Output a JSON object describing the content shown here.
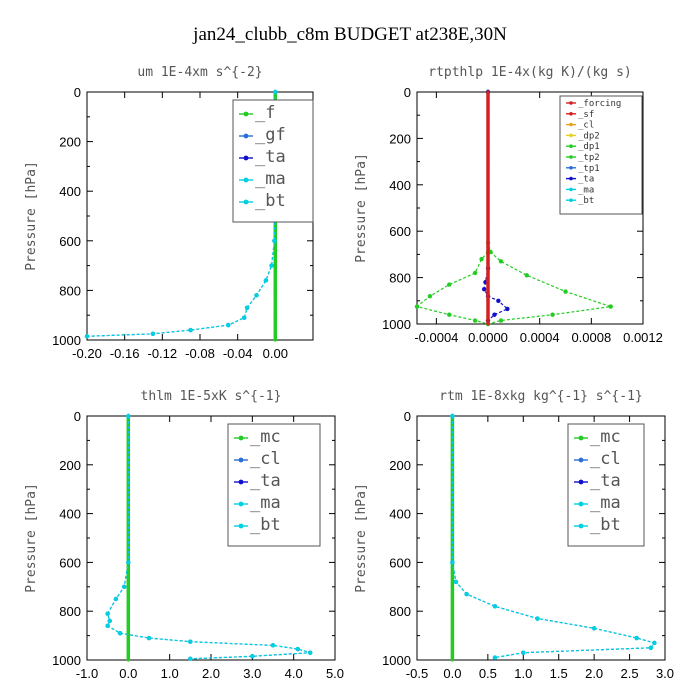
{
  "figure_title": "jan24_clubb_c8m  BUDGET at238E,30N",
  "colors": {
    "green": "#22cc22",
    "blue": "#2a6fd6",
    "darkblue": "#1010cc",
    "cyan": "#00d0e0",
    "red": "#d42020",
    "orange": "#e8a020",
    "yellow": "#e8d020"
  },
  "chart_data": [
    {
      "type": "line",
      "title": "um   1E-4xm  s^{-2}",
      "ylabel": "Pressure [hPa]",
      "xlim": [
        -0.2,
        0.04
      ],
      "ylim": [
        1000,
        0
      ],
      "xticks": [
        "-0.20",
        "-0.16",
        "-0.12",
        "-0.08",
        "-0.04",
        "0.00"
      ],
      "xtick_values": [
        -0.2,
        -0.16,
        -0.12,
        -0.08,
        -0.04,
        0.0
      ],
      "yticks": [
        "0",
        "200",
        "400",
        "600",
        "800",
        "1000"
      ],
      "ytick_values": [
        0,
        200,
        400,
        600,
        800,
        1000
      ],
      "legend": {
        "position": "top-right",
        "style": "big",
        "entries": [
          "_f",
          "_gf",
          "_ta",
          "_ma",
          "_bt"
        ]
      },
      "series": [
        {
          "name": "_f",
          "color": "#22cc22",
          "x": [
            0,
            0,
            0,
            0,
            0,
            0,
            0,
            0,
            0,
            0,
            0
          ],
          "y": [
            0,
            100,
            200,
            300,
            400,
            500,
            600,
            700,
            800,
            900,
            1000
          ]
        },
        {
          "name": "_gf",
          "color": "#2a6fd6",
          "x": [
            0,
            0,
            0,
            -0.001,
            -0.004,
            -0.01,
            -0.02,
            -0.03,
            -0.033,
            -0.05,
            -0.09,
            -0.13,
            -0.2
          ],
          "y": [
            0,
            200,
            400,
            600,
            700,
            760,
            820,
            870,
            910,
            940,
            960,
            975,
            985
          ]
        },
        {
          "name": "_bt",
          "color": "#00d0e0",
          "x": [
            0,
            0,
            0,
            -0.001,
            -0.004,
            -0.01,
            -0.02,
            -0.03,
            -0.033,
            -0.05,
            -0.09,
            -0.13,
            -0.2
          ],
          "y": [
            0,
            200,
            400,
            600,
            700,
            760,
            820,
            870,
            910,
            940,
            960,
            975,
            985
          ]
        }
      ]
    },
    {
      "type": "line",
      "title": "rtpthlp   1E-4x(kg K)/(kg s)",
      "ylabel": "Pressure [hPa]",
      "xlim": [
        -0.00055,
        0.0012
      ],
      "ylim": [
        1000,
        0
      ],
      "xticks": [
        "-0.0004",
        "0.0000",
        "0.0004",
        "0.0008",
        "0.0012"
      ],
      "xtick_values": [
        -0.0004,
        0.0,
        0.0004,
        0.0008,
        0.0012
      ],
      "yticks": [
        "0",
        "200",
        "400",
        "600",
        "800",
        "1000"
      ],
      "ytick_values": [
        0,
        200,
        400,
        600,
        800,
        1000
      ],
      "legend": {
        "position": "top-right",
        "style": "small",
        "entries": [
          "_forcing",
          "_sf",
          "_cl",
          "_dp2",
          "_dp1",
          "_tp2",
          "_tp1",
          "_ta",
          "_ma",
          "_bt"
        ]
      },
      "series": [
        {
          "name": "_tp2",
          "color": "#22cc22",
          "x": [
            0,
            0,
            2e-05,
            0.0001,
            0.0003,
            0.0006,
            0.00095,
            0.0005,
            0.0001,
            0
          ],
          "y": [
            0,
            650,
            690,
            730,
            790,
            860,
            925,
            960,
            985,
            1000
          ]
        },
        {
          "name": "_dp1",
          "color": "#22cc22",
          "x": [
            0,
            0,
            -5e-05,
            -0.0001,
            -0.0003,
            -0.00045,
            -0.00055,
            -0.0003,
            -0.0001,
            0
          ],
          "y": [
            0,
            690,
            720,
            780,
            830,
            880,
            925,
            960,
            985,
            1000
          ]
        },
        {
          "name": "_ta",
          "color": "#1010cc",
          "x": [
            0,
            0,
            -2e-05,
            -3e-05,
            0,
            8e-05,
            0.00015,
            5e-05,
            0
          ],
          "y": [
            0,
            760,
            820,
            850,
            880,
            900,
            935,
            960,
            985
          ]
        },
        {
          "name": "_forcing",
          "color": "#d42020",
          "x": [
            0,
            0,
            0,
            0,
            0,
            0,
            0,
            0,
            0,
            0,
            0
          ],
          "y": [
            0,
            100,
            200,
            300,
            400,
            500,
            600,
            700,
            800,
            900,
            1000
          ]
        }
      ]
    },
    {
      "type": "line",
      "title": "thlm   1E-5xK  s^{-1}",
      "ylabel": "Pressure [hPa]",
      "xlim": [
        -1.0,
        5.0
      ],
      "ylim": [
        1000,
        0
      ],
      "xticks": [
        "-1.0",
        "0.0",
        "1.0",
        "2.0",
        "3.0",
        "4.0",
        "5.0"
      ],
      "xtick_values": [
        -1.0,
        0.0,
        1.0,
        2.0,
        3.0,
        4.0,
        5.0
      ],
      "yticks": [
        "0",
        "200",
        "400",
        "600",
        "800",
        "1000"
      ],
      "ytick_values": [
        0,
        200,
        400,
        600,
        800,
        1000
      ],
      "legend": {
        "position": "top-right",
        "style": "big",
        "entries": [
          "_mc",
          "_cl",
          "_ta",
          "_ma",
          "_bt"
        ]
      },
      "series": [
        {
          "name": "_mc",
          "color": "#22cc22",
          "x": [
            0,
            0,
            0,
            0,
            0,
            0,
            0,
            0,
            0,
            0,
            0
          ],
          "y": [
            0,
            100,
            200,
            300,
            400,
            500,
            600,
            700,
            800,
            900,
            1000
          ]
        },
        {
          "name": "_cl",
          "color": "#2a6fd6",
          "x": [
            0,
            0,
            -0.1,
            -0.3,
            -0.5,
            -0.45,
            -0.5,
            -0.2,
            0.5,
            1.5,
            3.5,
            4.1,
            4.4,
            3.0,
            1.5
          ],
          "y": [
            0,
            600,
            700,
            750,
            810,
            840,
            860,
            890,
            910,
            925,
            940,
            955,
            970,
            985,
            995
          ]
        },
        {
          "name": "_bt",
          "color": "#00d0e0",
          "x": [
            0,
            0,
            -0.1,
            -0.3,
            -0.5,
            -0.45,
            -0.5,
            -0.2,
            0.5,
            1.5,
            3.5,
            4.1,
            4.4,
            3.0,
            1.5
          ],
          "y": [
            0,
            600,
            700,
            750,
            810,
            840,
            860,
            890,
            910,
            925,
            940,
            955,
            970,
            985,
            995
          ]
        }
      ]
    },
    {
      "type": "line",
      "title": "rtm   1E-8xkg  kg^{-1}  s^{-1}",
      "ylabel": "Pressure [hPa]",
      "xlim": [
        -0.5,
        3.0
      ],
      "ylim": [
        1000,
        0
      ],
      "xticks": [
        "-0.5",
        "0.0",
        "0.5",
        "1.0",
        "1.5",
        "2.0",
        "2.5",
        "3.0"
      ],
      "xtick_values": [
        -0.5,
        0.0,
        0.5,
        1.0,
        1.5,
        2.0,
        2.5,
        3.0
      ],
      "yticks": [
        "0",
        "200",
        "400",
        "600",
        "800",
        "1000"
      ],
      "ytick_values": [
        0,
        200,
        400,
        600,
        800,
        1000
      ],
      "legend": {
        "position": "top-right",
        "style": "big",
        "entries": [
          "_mc",
          "_cl",
          "_ta",
          "_ma",
          "_bt"
        ]
      },
      "series": [
        {
          "name": "_mc",
          "color": "#22cc22",
          "x": [
            0,
            0,
            0,
            0,
            0,
            0,
            0,
            0,
            0,
            0,
            0
          ],
          "y": [
            0,
            100,
            200,
            300,
            400,
            500,
            600,
            700,
            800,
            900,
            1000
          ]
        },
        {
          "name": "_cl",
          "color": "#2a6fd6",
          "x": [
            0,
            0,
            0.05,
            0.2,
            0.6,
            1.2,
            2.0,
            2.6,
            2.85,
            2.8,
            1.0,
            0.6
          ],
          "y": [
            0,
            600,
            680,
            730,
            780,
            830,
            870,
            910,
            930,
            950,
            970,
            990
          ]
        },
        {
          "name": "_bt",
          "color": "#00d0e0",
          "x": [
            0,
            0,
            0.05,
            0.2,
            0.6,
            1.2,
            2.0,
            2.6,
            2.85,
            2.8,
            1.0,
            0.6
          ],
          "y": [
            0,
            600,
            680,
            730,
            780,
            830,
            870,
            910,
            930,
            950,
            970,
            990
          ]
        }
      ]
    }
  ]
}
